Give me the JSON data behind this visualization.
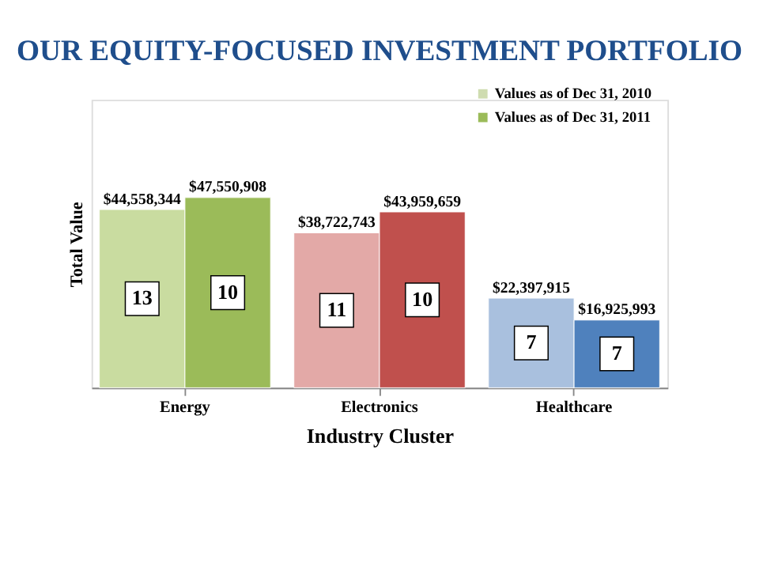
{
  "chart_data": {
    "type": "bar",
    "title": "OUR EQUITY-FOCUSED INVESTMENT PORTFOLIO",
    "xlabel": "Industry Cluster",
    "ylabel": "Total Value",
    "categories": [
      "Energy",
      "Electronics",
      "Healthcare"
    ],
    "series": [
      {
        "name": "Values as of Dec 31, 2010",
        "color": "#cfdcb0",
        "colors": [
          "#c9dca0",
          "#e3a9a7",
          "#a9c0de"
        ],
        "values": [
          44558344,
          38722743,
          22397915
        ],
        "value_labels": [
          "$44,558,344",
          "$38,722,743",
          "$22,397,915"
        ]
      },
      {
        "name": "Values as of Dec 31, 2011",
        "color": "#9bbb59",
        "colors": [
          "#9bbb59",
          "#c0504d",
          "#4f81bd"
        ],
        "values": [
          47550908,
          43959659,
          16925993
        ],
        "value_labels": [
          "$47,550,908",
          "$43,959,659",
          "$16,925,993"
        ]
      }
    ],
    "annotations": [
      "13",
      "11",
      "7",
      "10",
      "10",
      "7"
    ],
    "ylim": [
      0,
      72000000
    ],
    "tick_labels": "x",
    "grid": false,
    "legend": "top right",
    "data_labels": true
  }
}
